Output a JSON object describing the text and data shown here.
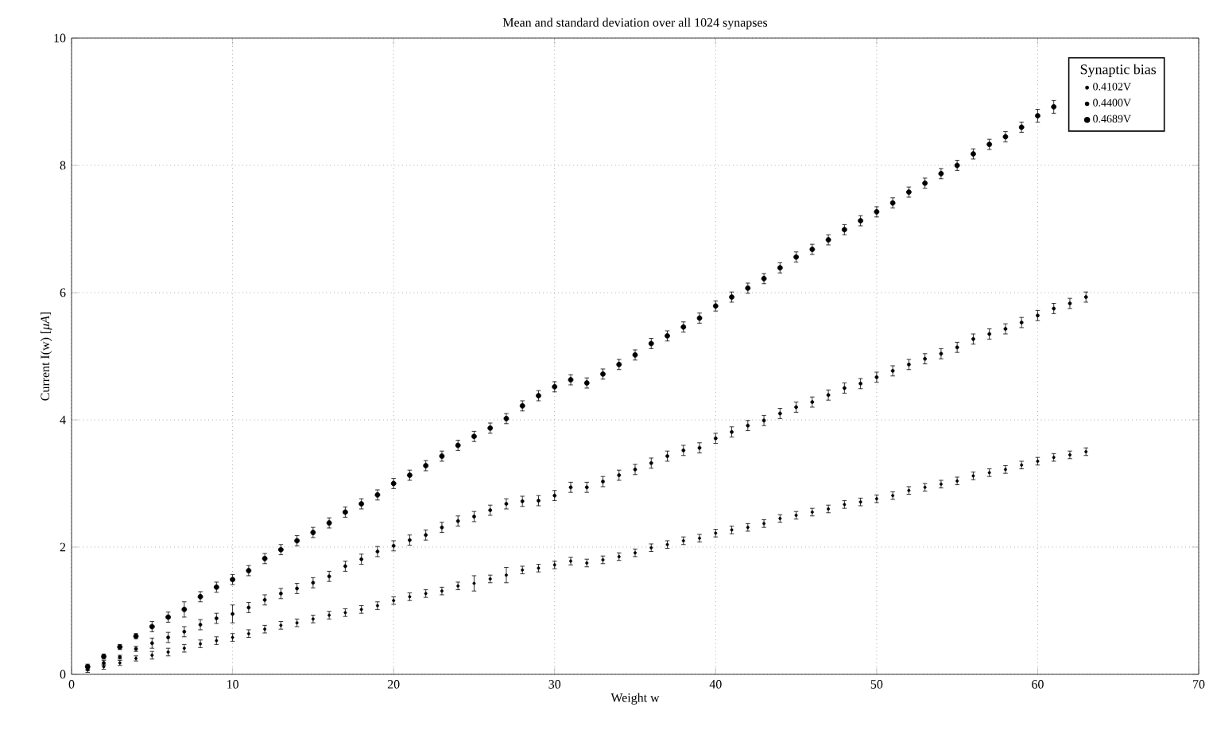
{
  "chart_data": {
    "type": "scatter",
    "title": "Mean and standard deviation over all 1024 synapses",
    "xlabel": "Weight w",
    "ylabel": "Current I(w) [*μA*]",
    "legend_title": "Synaptic bias",
    "x": [
      1,
      2,
      3,
      4,
      5,
      6,
      7,
      8,
      9,
      10,
      11,
      12,
      13,
      14,
      15,
      16,
      17,
      18,
      19,
      20,
      21,
      22,
      23,
      24,
      25,
      26,
      27,
      28,
      29,
      30,
      31,
      32,
      33,
      34,
      35,
      36,
      37,
      38,
      39,
      40,
      41,
      42,
      43,
      44,
      45,
      46,
      47,
      48,
      49,
      50,
      51,
      52,
      53,
      54,
      55,
      56,
      57,
      58,
      59,
      60,
      61,
      62,
      63
    ],
    "series": [
      {
        "name": "0.4102V",
        "color": "#000000",
        "values": [
          0.07,
          0.12,
          0.18,
          0.25,
          0.3,
          0.35,
          0.41,
          0.48,
          0.53,
          0.58,
          0.64,
          0.71,
          0.77,
          0.81,
          0.87,
          0.93,
          0.97,
          1.02,
          1.08,
          1.16,
          1.22,
          1.27,
          1.31,
          1.39,
          1.43,
          1.5,
          1.56,
          1.64,
          1.67,
          1.72,
          1.78,
          1.75,
          1.8,
          1.85,
          1.91,
          1.99,
          2.04,
          2.1,
          2.14,
          2.22,
          2.27,
          2.31,
          2.37,
          2.45,
          2.5,
          2.55,
          2.6,
          2.67,
          2.71,
          2.76,
          2.81,
          2.89,
          2.94,
          2.99,
          3.04,
          3.12,
          3.17,
          3.22,
          3.29,
          3.35,
          3.41,
          3.45,
          3.5
        ],
        "errors": [
          0.04,
          0.04,
          0.04,
          0.04,
          0.06,
          0.06,
          0.06,
          0.06,
          0.06,
          0.06,
          0.06,
          0.06,
          0.06,
          0.06,
          0.06,
          0.06,
          0.06,
          0.06,
          0.06,
          0.06,
          0.06,
          0.06,
          0.06,
          0.06,
          0.12,
          0.06,
          0.12,
          0.06,
          0.06,
          0.06,
          0.06,
          0.06,
          0.06,
          0.06,
          0.06,
          0.06,
          0.06,
          0.06,
          0.06,
          0.06,
          0.06,
          0.06,
          0.06,
          0.06,
          0.06,
          0.06,
          0.06,
          0.06,
          0.06,
          0.06,
          0.06,
          0.06,
          0.06,
          0.06,
          0.06,
          0.06,
          0.06,
          0.06,
          0.06,
          0.06,
          0.06,
          0.06,
          0.06
        ]
      },
      {
        "name": "0.4400V",
        "color": "#000000",
        "values": [
          0.1,
          0.18,
          0.27,
          0.4,
          0.49,
          0.58,
          0.67,
          0.78,
          0.88,
          0.95,
          1.05,
          1.17,
          1.27,
          1.35,
          1.44,
          1.54,
          1.7,
          1.81,
          1.93,
          2.02,
          2.11,
          2.19,
          2.31,
          2.41,
          2.48,
          2.58,
          2.68,
          2.72,
          2.73,
          2.81,
          2.94,
          2.94,
          3.03,
          3.13,
          3.22,
          3.32,
          3.43,
          3.52,
          3.56,
          3.71,
          3.81,
          3.91,
          3.99,
          4.1,
          4.2,
          4.28,
          4.39,
          4.5,
          4.57,
          4.67,
          4.77,
          4.87,
          4.96,
          5.04,
          5.14,
          5.27,
          5.35,
          5.43,
          5.53,
          5.64,
          5.75,
          5.83,
          5.93
        ],
        "errors": [
          0.04,
          0.04,
          0.03,
          0.04,
          0.08,
          0.08,
          0.08,
          0.08,
          0.08,
          0.14,
          0.08,
          0.08,
          0.08,
          0.08,
          0.08,
          0.08,
          0.08,
          0.08,
          0.08,
          0.08,
          0.08,
          0.08,
          0.08,
          0.08,
          0.08,
          0.08,
          0.08,
          0.08,
          0.08,
          0.08,
          0.08,
          0.08,
          0.08,
          0.08,
          0.08,
          0.08,
          0.08,
          0.08,
          0.08,
          0.08,
          0.08,
          0.08,
          0.08,
          0.08,
          0.08,
          0.08,
          0.08,
          0.08,
          0.08,
          0.08,
          0.08,
          0.08,
          0.08,
          0.08,
          0.08,
          0.08,
          0.08,
          0.08,
          0.08,
          0.08,
          0.08,
          0.08,
          0.08
        ]
      },
      {
        "name": "0.4689V",
        "color": "#000000",
        "values": [
          0.12,
          0.28,
          0.43,
          0.6,
          0.75,
          0.9,
          1.02,
          1.22,
          1.37,
          1.49,
          1.63,
          1.82,
          1.96,
          2.1,
          2.23,
          2.38,
          2.55,
          2.68,
          2.82,
          3.0,
          3.13,
          3.28,
          3.43,
          3.6,
          3.74,
          3.87,
          4.02,
          4.22,
          4.38,
          4.52,
          4.63,
          4.58,
          4.72,
          4.87,
          5.02,
          5.2,
          5.32,
          5.46,
          5.6,
          5.79,
          5.93,
          6.07,
          6.22,
          6.39,
          6.56,
          6.68,
          6.83,
          6.99,
          7.13,
          7.27,
          7.41,
          7.58,
          7.72,
          7.87,
          8.0,
          8.18,
          8.33,
          8.45,
          8.6,
          8.78,
          8.92,
          null,
          null
        ],
        "errors": [
          0.04,
          0.04,
          0.04,
          0.04,
          0.08,
          0.08,
          0.12,
          0.08,
          0.08,
          0.08,
          0.08,
          0.08,
          0.08,
          0.08,
          0.08,
          0.08,
          0.08,
          0.08,
          0.08,
          0.08,
          0.08,
          0.08,
          0.08,
          0.08,
          0.08,
          0.08,
          0.08,
          0.08,
          0.08,
          0.08,
          0.08,
          0.08,
          0.08,
          0.08,
          0.08,
          0.08,
          0.08,
          0.08,
          0.08,
          0.08,
          0.08,
          0.08,
          0.08,
          0.08,
          0.08,
          0.08,
          0.08,
          0.08,
          0.08,
          0.08,
          0.08,
          0.08,
          0.08,
          0.08,
          0.08,
          0.08,
          0.08,
          0.08,
          0.08,
          0.1,
          0.1,
          null,
          null
        ]
      }
    ],
    "xlim": [
      0,
      70
    ],
    "ylim": [
      0,
      10
    ],
    "xticks": [
      0,
      10,
      20,
      30,
      40,
      50,
      60,
      70
    ],
    "yticks": [
      0,
      2,
      4,
      6,
      8,
      10
    ],
    "grid": true,
    "legend": "top right"
  }
}
